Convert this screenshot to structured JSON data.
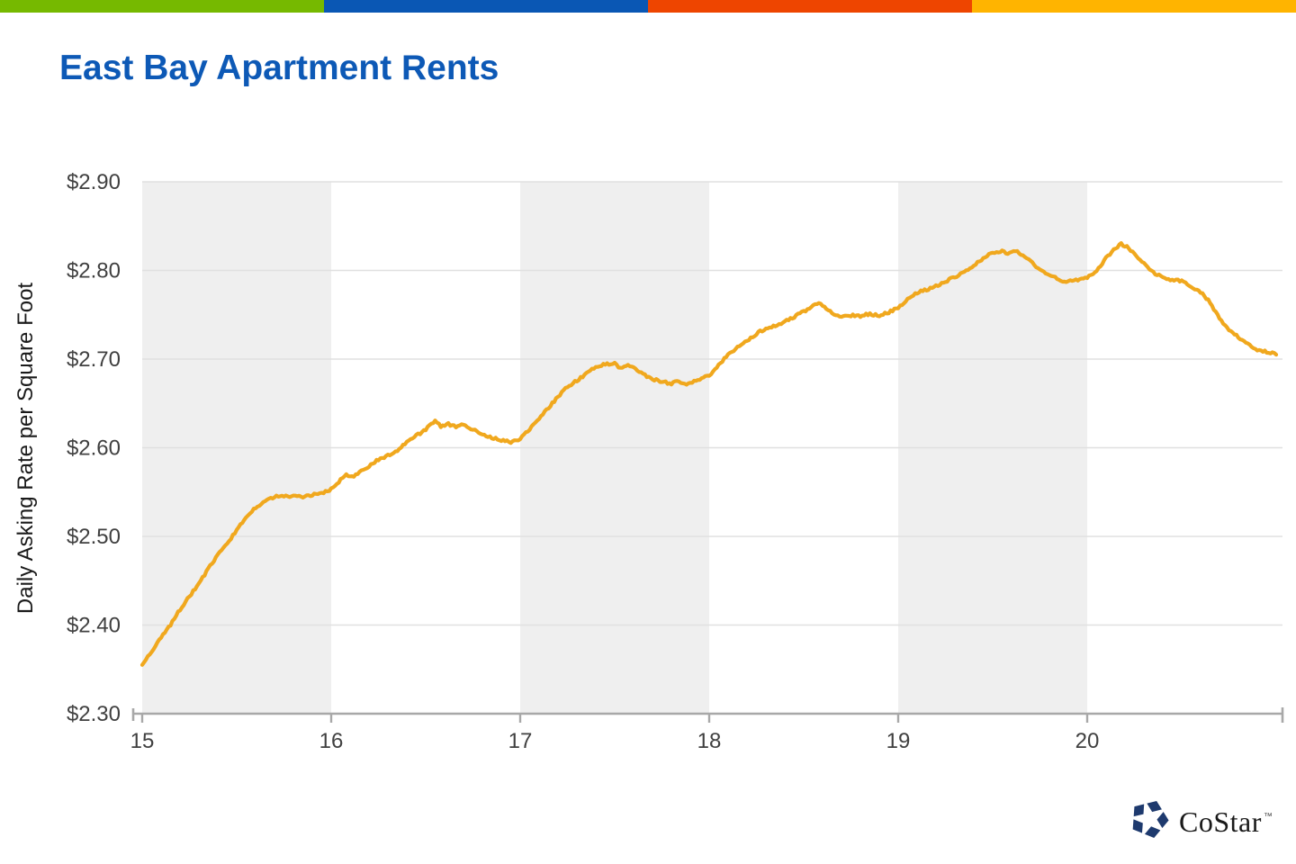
{
  "brand_bar": {
    "segments": [
      {
        "name": "green",
        "color": "#76B900"
      },
      {
        "name": "blue",
        "color": "#0A57B4"
      },
      {
        "name": "orange",
        "color": "#EE4500"
      },
      {
        "name": "amber",
        "color": "#FFB400"
      }
    ]
  },
  "header": {
    "title": "East Bay Apartment Rents",
    "title_color": "#0D59B6"
  },
  "footer": {
    "logo_text": "CoStar",
    "trademark": "™",
    "icon_color": "#1E3A6E"
  },
  "chart_data": {
    "type": "line",
    "title": "East Bay Apartment Rents",
    "xlabel": "",
    "ylabel": "Daily Asking Rate per Square Foot",
    "x_tick_labels": [
      "15",
      "16",
      "17",
      "18",
      "19",
      "20"
    ],
    "x_ticks": [
      15,
      16,
      17,
      18,
      19,
      20
    ],
    "y_tick_labels": [
      "$2.30",
      "$2.40",
      "$2.50",
      "$2.60",
      "$2.70",
      "$2.80",
      "$2.90"
    ],
    "y_ticks": [
      2.3,
      2.4,
      2.5,
      2.6,
      2.7,
      2.8,
      2.9
    ],
    "xlim": [
      15,
      21.03
    ],
    "ylim": [
      2.3,
      2.9
    ],
    "grid": true,
    "legend_position": "none",
    "background_bands": {
      "gray_years": [
        [
          15,
          16
        ],
        [
          17,
          18
        ],
        [
          19,
          20
        ]
      ],
      "color": "#EFEFEF"
    },
    "line_color": "#F0A81E",
    "grid_color": "#E0E0E0",
    "axis_color": "#A8A8A8",
    "tick_label_color": "#404040",
    "series": [
      {
        "name": "Daily Asking Rate per Square Foot ($)",
        "points": [
          [
            15.0,
            2.355
          ],
          [
            15.05,
            2.37
          ],
          [
            15.1,
            2.386
          ],
          [
            15.15,
            2.401
          ],
          [
            15.2,
            2.417
          ],
          [
            15.25,
            2.432
          ],
          [
            15.3,
            2.448
          ],
          [
            15.35,
            2.463
          ],
          [
            15.4,
            2.478
          ],
          [
            15.45,
            2.493
          ],
          [
            15.5,
            2.507
          ],
          [
            15.55,
            2.521
          ],
          [
            15.6,
            2.533
          ],
          [
            15.65,
            2.541
          ],
          [
            15.7,
            2.544
          ],
          [
            15.75,
            2.545
          ],
          [
            15.8,
            2.546
          ],
          [
            15.85,
            2.545
          ],
          [
            15.9,
            2.546
          ],
          [
            15.95,
            2.549
          ],
          [
            16.0,
            2.554
          ],
          [
            16.05,
            2.563
          ],
          [
            16.08,
            2.569
          ],
          [
            16.12,
            2.568
          ],
          [
            16.15,
            2.573
          ],
          [
            16.2,
            2.579
          ],
          [
            16.25,
            2.586
          ],
          [
            16.3,
            2.592
          ],
          [
            16.35,
            2.597
          ],
          [
            16.4,
            2.605
          ],
          [
            16.45,
            2.614
          ],
          [
            16.5,
            2.621
          ],
          [
            16.55,
            2.63
          ],
          [
            16.58,
            2.623
          ],
          [
            16.62,
            2.627
          ],
          [
            16.66,
            2.624
          ],
          [
            16.7,
            2.626
          ],
          [
            16.75,
            2.62
          ],
          [
            16.8,
            2.615
          ],
          [
            16.85,
            2.612
          ],
          [
            16.9,
            2.608
          ],
          [
            16.95,
            2.606
          ],
          [
            17.0,
            2.611
          ],
          [
            17.05,
            2.621
          ],
          [
            17.1,
            2.633
          ],
          [
            17.15,
            2.646
          ],
          [
            17.2,
            2.658
          ],
          [
            17.25,
            2.668
          ],
          [
            17.3,
            2.676
          ],
          [
            17.35,
            2.684
          ],
          [
            17.4,
            2.691
          ],
          [
            17.45,
            2.694
          ],
          [
            17.5,
            2.696
          ],
          [
            17.53,
            2.69
          ],
          [
            17.57,
            2.693
          ],
          [
            17.6,
            2.689
          ],
          [
            17.65,
            2.684
          ],
          [
            17.7,
            2.678
          ],
          [
            17.75,
            2.674
          ],
          [
            17.8,
            2.672
          ],
          [
            17.83,
            2.677
          ],
          [
            17.87,
            2.673
          ],
          [
            17.9,
            2.672
          ],
          [
            17.95,
            2.677
          ],
          [
            18.0,
            2.682
          ],
          [
            18.05,
            2.693
          ],
          [
            18.1,
            2.704
          ],
          [
            18.15,
            2.713
          ],
          [
            18.2,
            2.721
          ],
          [
            18.25,
            2.728
          ],
          [
            18.3,
            2.734
          ],
          [
            18.35,
            2.738
          ],
          [
            18.4,
            2.742
          ],
          [
            18.45,
            2.747
          ],
          [
            18.5,
            2.754
          ],
          [
            18.55,
            2.761
          ],
          [
            18.58,
            2.762
          ],
          [
            18.62,
            2.757
          ],
          [
            18.65,
            2.752
          ],
          [
            18.7,
            2.748
          ],
          [
            18.75,
            2.749
          ],
          [
            18.8,
            2.748
          ],
          [
            18.85,
            2.752
          ],
          [
            18.9,
            2.749
          ],
          [
            18.95,
            2.752
          ],
          [
            19.0,
            2.758
          ],
          [
            19.05,
            2.768
          ],
          [
            19.1,
            2.774
          ],
          [
            19.15,
            2.778
          ],
          [
            19.2,
            2.783
          ],
          [
            19.25,
            2.787
          ],
          [
            19.3,
            2.792
          ],
          [
            19.35,
            2.798
          ],
          [
            19.4,
            2.806
          ],
          [
            19.45,
            2.813
          ],
          [
            19.5,
            2.82
          ],
          [
            19.55,
            2.822
          ],
          [
            19.58,
            2.819
          ],
          [
            19.62,
            2.821
          ],
          [
            19.66,
            2.817
          ],
          [
            19.7,
            2.811
          ],
          [
            19.75,
            2.801
          ],
          [
            19.8,
            2.794
          ],
          [
            19.85,
            2.79
          ],
          [
            19.9,
            2.788
          ],
          [
            19.95,
            2.789
          ],
          [
            20.0,
            2.791
          ],
          [
            20.05,
            2.801
          ],
          [
            20.1,
            2.814
          ],
          [
            20.15,
            2.824
          ],
          [
            20.18,
            2.83
          ],
          [
            20.22,
            2.826
          ],
          [
            20.26,
            2.817
          ],
          [
            20.3,
            2.807
          ],
          [
            20.35,
            2.798
          ],
          [
            20.4,
            2.793
          ],
          [
            20.45,
            2.788
          ],
          [
            20.5,
            2.788
          ],
          [
            20.55,
            2.783
          ],
          [
            20.6,
            2.776
          ],
          [
            20.65,
            2.763
          ],
          [
            20.7,
            2.746
          ],
          [
            20.75,
            2.734
          ],
          [
            20.8,
            2.724
          ],
          [
            20.85,
            2.717
          ],
          [
            20.9,
            2.711
          ],
          [
            20.95,
            2.708
          ],
          [
            21.0,
            2.705
          ]
        ]
      }
    ]
  }
}
